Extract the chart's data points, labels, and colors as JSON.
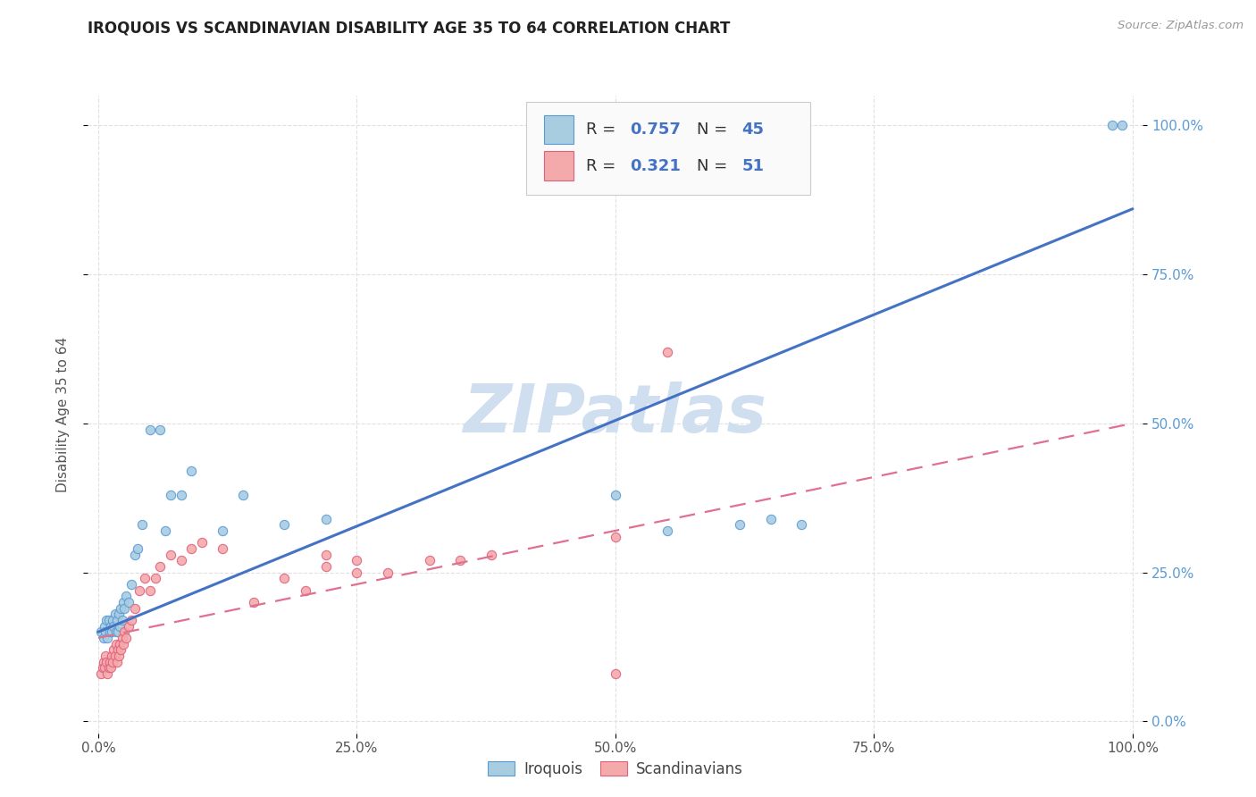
{
  "title": "IROQUOIS VS SCANDINAVIAN DISABILITY AGE 35 TO 64 CORRELATION CHART",
  "source": "Source: ZipAtlas.com",
  "ylabel": "Disability Age 35 to 64",
  "xlim": [
    -0.01,
    1.01
  ],
  "ylim": [
    -0.02,
    1.05
  ],
  "xticks": [
    0.0,
    0.25,
    0.5,
    0.75,
    1.0
  ],
  "xtick_labels": [
    "0.0%",
    "25.0%",
    "50.0%",
    "75.0%",
    "100.0%"
  ],
  "yticks": [
    0.0,
    0.25,
    0.5,
    0.75,
    1.0
  ],
  "ytick_labels": [
    "0.0%",
    "25.0%",
    "50.0%",
    "75.0%",
    "100.0%"
  ],
  "legend_r1": "0.757",
  "legend_n1": "45",
  "legend_r2": "0.321",
  "legend_n2": "51",
  "color_iroquois_fill": "#a8cce0",
  "color_iroquois_edge": "#5b9bd5",
  "color_scandinavian_fill": "#f4aaaa",
  "color_scandinavian_edge": "#e06080",
  "color_iroquois_line": "#4472c4",
  "color_scandinavian_line": "#e07090",
  "watermark": "ZIPatlas",
  "watermark_color": "#d0dff0",
  "background_color": "#ffffff",
  "grid_color": "#e0e0e0",
  "right_label_color": "#5b9bd5",
  "iroquois_x": [
    0.003,
    0.005,
    0.006,
    0.007,
    0.008,
    0.009,
    0.01,
    0.011,
    0.012,
    0.013,
    0.014,
    0.015,
    0.016,
    0.017,
    0.018,
    0.019,
    0.02,
    0.021,
    0.022,
    0.023,
    0.024,
    0.025,
    0.027,
    0.029,
    0.032,
    0.035,
    0.038,
    0.042,
    0.05,
    0.06,
    0.065,
    0.07,
    0.08,
    0.09,
    0.12,
    0.14,
    0.18,
    0.22,
    0.5,
    0.55,
    0.62,
    0.65,
    0.68,
    0.98,
    0.99
  ],
  "iroquois_y": [
    0.15,
    0.14,
    0.16,
    0.15,
    0.17,
    0.14,
    0.17,
    0.15,
    0.16,
    0.15,
    0.17,
    0.16,
    0.18,
    0.15,
    0.17,
    0.15,
    0.18,
    0.16,
    0.19,
    0.17,
    0.2,
    0.19,
    0.21,
    0.2,
    0.23,
    0.28,
    0.29,
    0.33,
    0.49,
    0.49,
    0.32,
    0.38,
    0.38,
    0.42,
    0.32,
    0.38,
    0.33,
    0.34,
    0.38,
    0.32,
    0.33,
    0.34,
    0.33,
    1.0,
    1.0
  ],
  "scandinavian_x": [
    0.003,
    0.004,
    0.005,
    0.006,
    0.007,
    0.008,
    0.009,
    0.01,
    0.011,
    0.012,
    0.013,
    0.014,
    0.015,
    0.016,
    0.017,
    0.018,
    0.019,
    0.02,
    0.021,
    0.022,
    0.023,
    0.024,
    0.025,
    0.027,
    0.029,
    0.032,
    0.035,
    0.04,
    0.045,
    0.05,
    0.055,
    0.06,
    0.07,
    0.08,
    0.09,
    0.1,
    0.12,
    0.15,
    0.18,
    0.2,
    0.22,
    0.25,
    0.28,
    0.32,
    0.35,
    0.38,
    0.22,
    0.25,
    0.5,
    0.5,
    0.55
  ],
  "scandinavian_y": [
    0.08,
    0.09,
    0.1,
    0.09,
    0.11,
    0.1,
    0.08,
    0.09,
    0.1,
    0.09,
    0.11,
    0.1,
    0.12,
    0.11,
    0.13,
    0.1,
    0.12,
    0.11,
    0.13,
    0.12,
    0.14,
    0.13,
    0.15,
    0.14,
    0.16,
    0.17,
    0.19,
    0.22,
    0.24,
    0.22,
    0.24,
    0.26,
    0.28,
    0.27,
    0.29,
    0.3,
    0.29,
    0.2,
    0.24,
    0.22,
    0.26,
    0.27,
    0.25,
    0.27,
    0.27,
    0.28,
    0.28,
    0.25,
    0.08,
    0.31,
    0.62
  ],
  "iroquois_line_x0": 0.0,
  "iroquois_line_x1": 1.0,
  "iroquois_line_y0": 0.15,
  "iroquois_line_y1": 0.86,
  "scandinavian_line_x0": 0.0,
  "scandinavian_line_x1": 1.0,
  "scandinavian_line_y0": 0.14,
  "scandinavian_line_y1": 0.5
}
